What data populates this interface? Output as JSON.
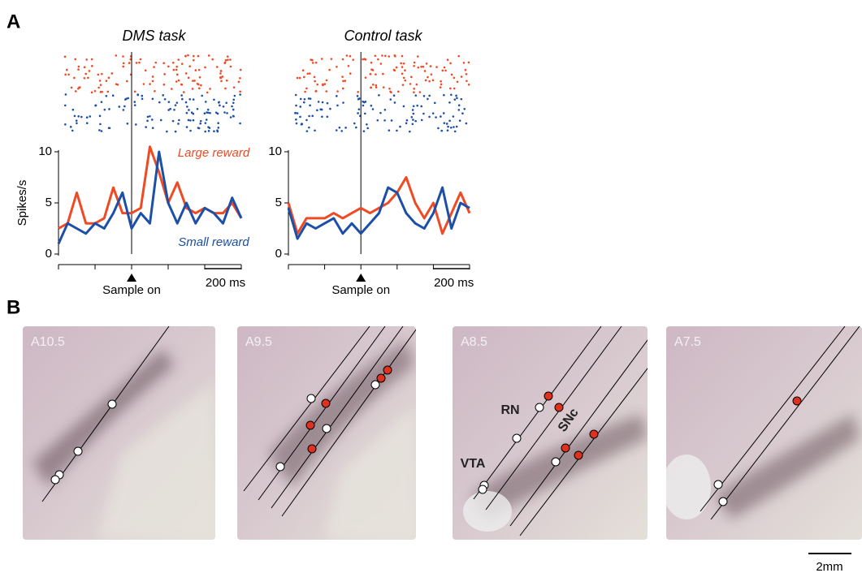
{
  "panel_labels": [
    "A",
    "B"
  ],
  "chart_data": [
    {
      "type": "line",
      "title": "DMS task",
      "y_label": "Spikes/s",
      "x": [
        -400,
        -350,
        -300,
        -250,
        -200,
        -150,
        -100,
        -50,
        0,
        50,
        100,
        150,
        200,
        250,
        300,
        350,
        400,
        450,
        500,
        550,
        600
      ],
      "series": [
        {
          "name": "Large reward",
          "color": "#f04a24",
          "values": [
            2.5,
            3,
            6,
            3,
            3,
            3.5,
            6.5,
            4,
            4,
            4.5,
            10.5,
            8,
            5,
            7,
            4.5,
            4,
            4.5,
            4,
            4,
            5,
            3.5
          ]
        },
        {
          "name": "Small reward",
          "color": "#1c4fa8",
          "values": [
            1,
            3,
            2.5,
            2,
            3,
            2.5,
            4,
            6,
            2.5,
            4,
            3,
            10,
            5,
            3,
            5,
            3,
            4.5,
            4,
            3,
            5.5,
            3.5
          ]
        }
      ],
      "xlim": [
        -400,
        600
      ],
      "xticks": [
        -400,
        -200,
        0,
        200,
        400,
        600
      ],
      "ylim": [
        0,
        10
      ],
      "yticks": [
        0,
        5,
        10
      ],
      "event": {
        "label": "Sample on",
        "x": 0
      },
      "scale_bar": {
        "label": "200 ms",
        "from": 400,
        "to": 600
      }
    },
    {
      "type": "line",
      "title": "Control task",
      "x": [
        -400,
        -350,
        -300,
        -250,
        -200,
        -150,
        -100,
        -50,
        0,
        50,
        100,
        150,
        200,
        250,
        300,
        350,
        400,
        450,
        500,
        550,
        600
      ],
      "series": [
        {
          "color": "#f04a24",
          "values": [
            5,
            2,
            3.5,
            3.5,
            3.5,
            4,
            3.5,
            4,
            4.5,
            4,
            4.5,
            5,
            6,
            7.5,
            5,
            3.5,
            5,
            2,
            4,
            6,
            4
          ]
        },
        {
          "color": "#1c4fa8",
          "values": [
            4.5,
            1.5,
            3,
            2.5,
            3,
            3.5,
            2,
            3,
            2,
            3,
            4,
            6.5,
            6,
            4,
            3,
            2.5,
            4,
            6.5,
            2.5,
            5,
            4.5
          ]
        }
      ],
      "xlim": [
        -400,
        600
      ],
      "xticks": [
        -400,
        -200,
        0,
        200,
        400,
        600
      ],
      "ylim": [
        0,
        10
      ],
      "yticks": [
        0,
        5,
        10
      ],
      "event": {
        "label": "Sample on",
        "x": 0
      },
      "scale_bar": {
        "label": "200 ms",
        "from": 400,
        "to": 600
      }
    }
  ],
  "histology": {
    "sections": [
      "A10.5",
      "A9.5",
      "A8.5",
      "A7.5"
    ],
    "regions": [
      "RN",
      "SNc",
      "VTA"
    ],
    "scale_bar": "2mm"
  }
}
